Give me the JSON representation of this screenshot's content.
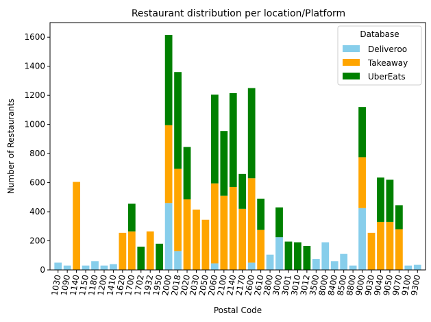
{
  "chart_data": {
    "type": "bar",
    "stacked": true,
    "title": "Restaurant distribution per location/Platform",
    "xlabel": "Postal Code",
    "ylabel": "Number of Restaurants",
    "ylim": [
      0,
      1700
    ],
    "yticks": [
      0,
      200,
      400,
      600,
      800,
      1000,
      1200,
      1400,
      1600
    ],
    "legend": {
      "title": "Database",
      "placement": "top-right"
    },
    "categories": [
      "1030",
      "1090",
      "1140",
      "1150",
      "1180",
      "1200",
      "1410",
      "1620",
      "1700",
      "1702",
      "1932",
      "1950",
      "2000",
      "2018",
      "2020",
      "2030",
      "2050",
      "2060",
      "2100",
      "2140",
      "2170",
      "2600",
      "2610",
      "2800",
      "3000",
      "3001",
      "3010",
      "3012",
      "3500",
      "8000",
      "8400",
      "8500",
      "8800",
      "9000",
      "9030",
      "9040",
      "9050",
      "9070",
      "9100",
      "9300"
    ],
    "series": [
      {
        "name": "Deliveroo",
        "color": "#87ceeb",
        "values": [
          50,
          30,
          0,
          30,
          60,
          30,
          40,
          0,
          0,
          0,
          0,
          0,
          460,
          130,
          0,
          0,
          0,
          45,
          0,
          0,
          0,
          50,
          0,
          105,
          225,
          0,
          0,
          0,
          75,
          190,
          60,
          110,
          30,
          425,
          0,
          0,
          0,
          0,
          30,
          35
        ]
      },
      {
        "name": "Takeaway",
        "color": "#ffa500",
        "values": [
          0,
          0,
          605,
          0,
          0,
          0,
          0,
          255,
          265,
          0,
          265,
          0,
          535,
          565,
          485,
          415,
          345,
          550,
          510,
          570,
          420,
          580,
          275,
          0,
          0,
          0,
          0,
          0,
          0,
          0,
          0,
          0,
          0,
          350,
          255,
          330,
          330,
          280,
          0,
          0
        ]
      },
      {
        "name": "UberEats",
        "color": "#008000",
        "values": [
          0,
          0,
          0,
          0,
          0,
          0,
          0,
          0,
          190,
          160,
          0,
          180,
          620,
          665,
          360,
          0,
          0,
          610,
          445,
          645,
          240,
          620,
          215,
          0,
          205,
          195,
          190,
          165,
          0,
          0,
          0,
          0,
          0,
          345,
          0,
          305,
          290,
          165,
          0,
          0
        ]
      }
    ]
  }
}
